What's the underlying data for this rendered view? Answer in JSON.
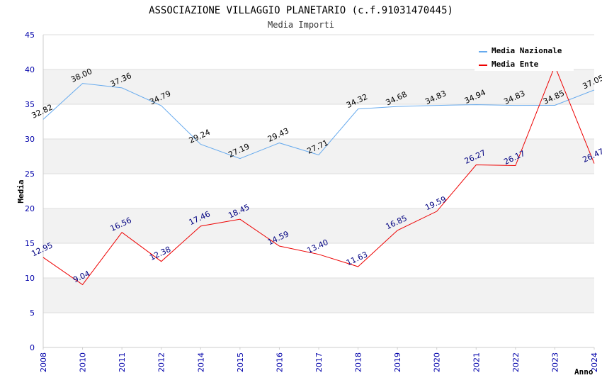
{
  "chart_data": {
    "type": "line",
    "title": "ASSOCIAZIONE VILLAGGIO PLANETARIO (c.f.91031470445)",
    "subtitle": "Media Importi",
    "xlabel": "Anno",
    "ylabel": "Media",
    "ylim": [
      0,
      45
    ],
    "yticks": [
      0,
      5,
      10,
      15,
      20,
      25,
      30,
      35,
      40,
      45
    ],
    "grid": true,
    "legend_position": "top-right",
    "categories": [
      "2008",
      "2010",
      "2011",
      "2012",
      "2014",
      "2015",
      "2016",
      "2017",
      "2018",
      "2019",
      "2020",
      "2021",
      "2022",
      "2023",
      "2024"
    ],
    "series": [
      {
        "name": "Media Nazionale",
        "color": "#66aaee",
        "values": [
          32.82,
          38.0,
          37.36,
          34.79,
          29.24,
          27.19,
          29.43,
          27.71,
          34.32,
          34.68,
          34.83,
          34.94,
          34.83,
          34.85,
          37.05
        ],
        "labels": [
          "32.82",
          "38.00",
          "37.36",
          "34.79",
          "29.24",
          "27.19",
          "29.43",
          "27.71",
          "34.32",
          "34.68",
          "34.83",
          "34.94",
          "34.83",
          "34.85",
          "37.05"
        ]
      },
      {
        "name": "Media Ente",
        "color": "#ee0000",
        "values": [
          12.95,
          9.04,
          16.56,
          12.38,
          17.46,
          18.45,
          14.59,
          13.4,
          11.63,
          16.85,
          19.59,
          26.27,
          26.17,
          40.5,
          26.47
        ],
        "labels": [
          "12.95",
          "9.04",
          "16.56",
          "12.38",
          "17.46",
          "18.45",
          "14.59",
          "13.40",
          "11.63",
          "16.85",
          "19.59",
          "26.27",
          "26.17",
          "",
          "26.47"
        ]
      }
    ]
  }
}
